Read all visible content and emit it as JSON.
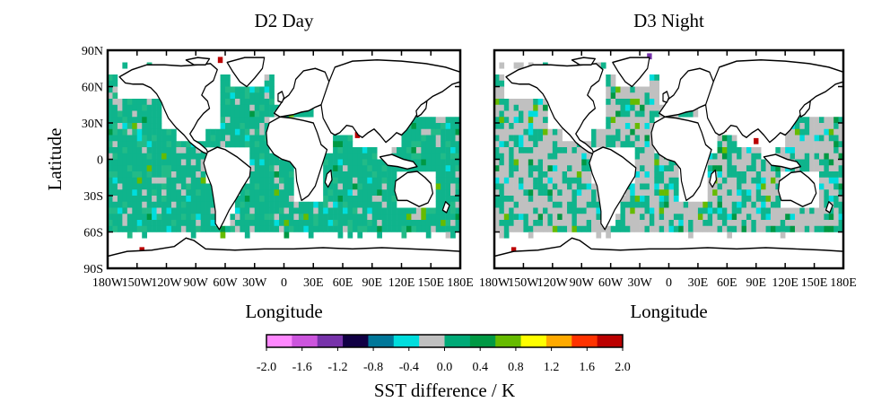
{
  "figure": {
    "panels": [
      {
        "title": "D2 Day",
        "xlabel": "Longitude",
        "ylabel": "Latitude",
        "dominant_color": "#0fb48c",
        "ocean_coverage_gray_fraction": 0.1
      },
      {
        "title": "D3 Night",
        "xlabel": "Longitude",
        "ylabel": "",
        "dominant_color": "#c0c0c0",
        "ocean_coverage_gray_fraction": 0.55
      }
    ],
    "x_ticks": [
      "180W",
      "150W",
      "120W",
      "90W",
      "60W",
      "30W",
      "0",
      "30E",
      "60E",
      "90E",
      "120E",
      "150E",
      "180E"
    ],
    "y_ticks": [
      "90N",
      "60N",
      "30N",
      "0",
      "30S",
      "60S",
      "90S"
    ],
    "colorbar": {
      "label": "SST difference / K",
      "ticks": [
        "-2.0",
        "-1.6",
        "-1.2",
        "-0.8",
        "-0.4",
        "0.0",
        "0.4",
        "0.8",
        "1.2",
        "1.6",
        "2.0"
      ],
      "range": [
        -2.0,
        2.0
      ],
      "colors": [
        "#ff88ff",
        "#cc55dd",
        "#7733aa",
        "#110044",
        "#007799",
        "#00dddd",
        "#c0c0c0",
        "#00aa77",
        "#009944",
        "#66bb00",
        "#ffff00",
        "#ffaa00",
        "#ff3300",
        "#bb0000"
      ]
    }
  },
  "chart_data": {
    "type": "heatmap",
    "projection": "equirectangular",
    "lon_range": [
      -180,
      180
    ],
    "lat_range": [
      -90,
      90
    ],
    "grid_resolution_deg": 5,
    "value_range": [
      -2.0,
      2.0
    ],
    "colorbar_label": "SST difference / K",
    "panels": [
      {
        "title": "D2 Day",
        "description_values": "mostly 0.0 to 0.4 K (green); scattered -0.4 to 0.0 (gray/cyan); few outliers",
        "outliers": [
          {
            "lon": -145,
            "lat": 65,
            "value": 2.0
          },
          {
            "lon": 75,
            "lat": 20,
            "value": 2.0
          },
          {
            "lon": -145,
            "lat": -75,
            "value": 2.0
          },
          {
            "lon": -65,
            "lat": 82,
            "value": 2.0
          }
        ]
      },
      {
        "title": "D3 Night",
        "description_values": "mostly -0.4 to 0.0 K (gray); scattered 0.0 to 0.4 (green)",
        "outliers": [
          {
            "lon": 90,
            "lat": 15,
            "value": 2.0
          },
          {
            "lon": 57,
            "lat": 25,
            "value": 2.0
          },
          {
            "lon": -160,
            "lat": -75,
            "value": 2.0
          },
          {
            "lon": -20,
            "lat": 85,
            "value": -1.2
          }
        ]
      }
    ]
  }
}
